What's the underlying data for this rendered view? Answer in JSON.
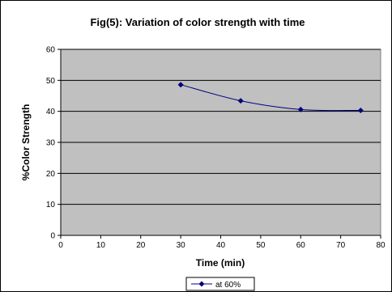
{
  "chart_data": {
    "type": "line",
    "title": "Fig(5): Variation of color strength with time",
    "xlabel": "Time (min)",
    "ylabel": "%Color Strength",
    "xlim": [
      0,
      80
    ],
    "ylim": [
      0,
      60
    ],
    "x_ticks": [
      0,
      10,
      20,
      30,
      40,
      50,
      60,
      70,
      80
    ],
    "y_ticks": [
      0,
      10,
      20,
      30,
      40,
      50,
      60
    ],
    "grid": "horizontal",
    "legend_position": "bottom",
    "plot_background": "#c0c0c0",
    "series": [
      {
        "name": "at 60%",
        "color": "#000080",
        "marker": "diamond",
        "points": [
          {
            "x": 30,
            "y": 48.6
          },
          {
            "x": 45,
            "y": 43.4
          },
          {
            "x": 60,
            "y": 40.6
          },
          {
            "x": 75,
            "y": 40.3
          }
        ]
      }
    ]
  }
}
